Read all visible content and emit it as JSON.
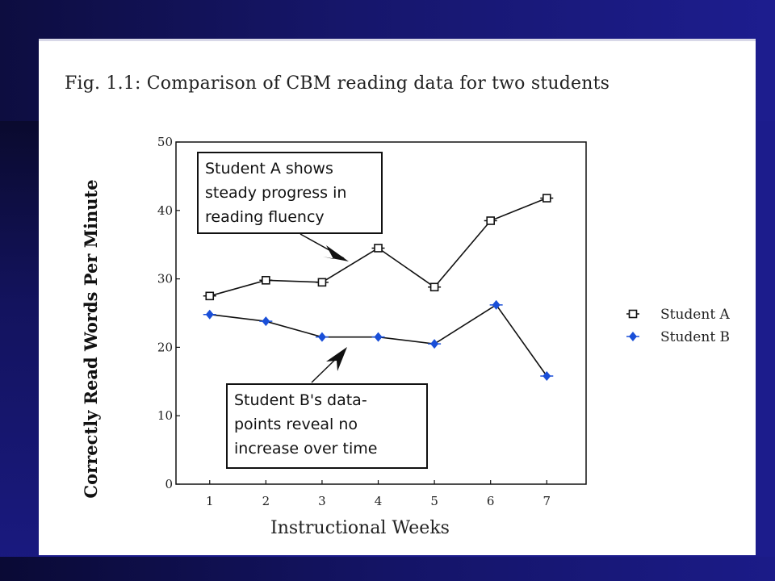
{
  "figure_title": "Fig. 1.1:   Comparison of CBM reading data for two students",
  "annotations": {
    "student_a": [
      "Student A shows",
      "steady progress in",
      "reading fluency"
    ],
    "student_b": [
      "Student B's data-",
      "points reveal no",
      "increase over time"
    ]
  },
  "chart_data": {
    "type": "line",
    "title": "",
    "xlabel": "Instructional Weeks",
    "ylabel": "Correctly Read Words Per Minute",
    "ylim": [
      0,
      50
    ],
    "xlim": [
      0.4,
      7.7
    ],
    "yticks": [
      0,
      10,
      20,
      30,
      40,
      50
    ],
    "xticks": [
      1,
      2,
      3,
      4,
      5,
      6,
      7
    ],
    "grid": false,
    "legend_position": "right",
    "series": [
      {
        "name": "Student A",
        "color": "#111111",
        "marker": "square",
        "x": [
          1,
          2,
          3,
          4,
          5,
          6,
          7
        ],
        "y": [
          27.5,
          29.8,
          29.5,
          34.5,
          28.8,
          38.5,
          41.8
        ]
      },
      {
        "name": "Student B",
        "color": "#1a4fd8",
        "marker": "diamond",
        "x": [
          1,
          2,
          3,
          4,
          5,
          6.1,
          7
        ],
        "y": [
          24.8,
          23.8,
          21.5,
          21.5,
          20.5,
          26.2,
          15.8
        ]
      }
    ]
  }
}
